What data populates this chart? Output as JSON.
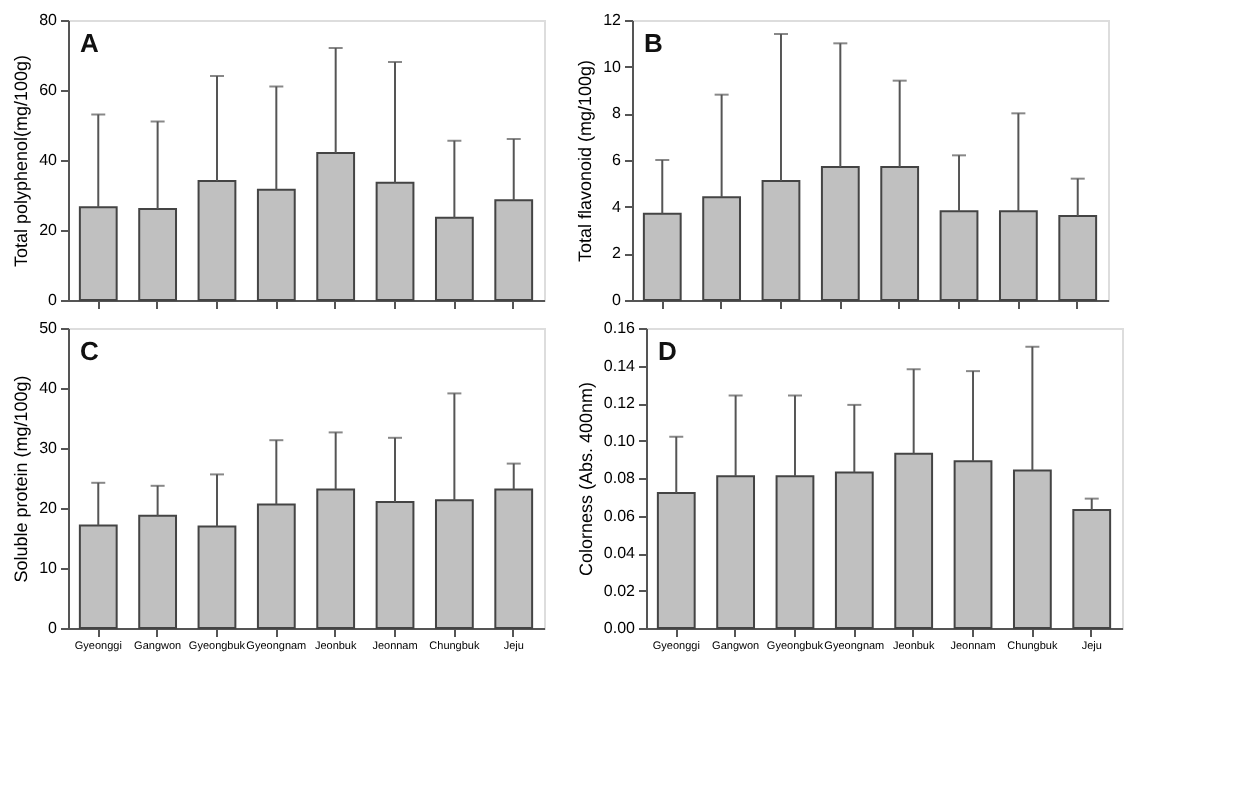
{
  "chart_data": [
    {
      "type": "bar",
      "categories": [
        null,
        null,
        null,
        null,
        null,
        null,
        null,
        null
      ],
      "ylabel": "Total polyphenol(mg/100g)",
      "annotations": [
        "A"
      ],
      "color": "#c0c0c0",
      "values": [
        26.5,
        26,
        34,
        31.5,
        42,
        33.5,
        23.5,
        28.5
      ],
      "errors": [
        [
          26.5,
          53
        ],
        [
          26,
          51
        ],
        [
          34,
          64
        ],
        [
          31.5,
          61
        ],
        [
          42,
          72
        ],
        [
          33.5,
          68
        ],
        [
          23.5,
          45.5
        ],
        [
          28.5,
          46
        ]
      ],
      "ylim": [
        0,
        80
      ],
      "yticks": [
        0,
        20,
        40,
        60,
        80
      ],
      "tick_labels": "y",
      "grid": false
    },
    {
      "type": "bar",
      "categories": [
        null,
        null,
        null,
        null,
        null,
        null,
        null,
        null
      ],
      "ylabel": "Total flavonoid (mg/100g)",
      "annotations": [
        "B"
      ],
      "color": "#c0c0c0",
      "values": [
        3.7,
        4.4,
        5.1,
        5.7,
        5.7,
        3.8,
        3.8,
        3.6
      ],
      "errors": [
        [
          3.7,
          6.0
        ],
        [
          4.4,
          8.8
        ],
        [
          5.1,
          11.4
        ],
        [
          5.7,
          11.0
        ],
        [
          5.7,
          9.4
        ],
        [
          3.8,
          6.2
        ],
        [
          3.8,
          8.0
        ],
        [
          3.6,
          5.2
        ]
      ],
      "ylim": [
        0,
        12
      ],
      "yticks": [
        0,
        2,
        4,
        6,
        8,
        10,
        12
      ],
      "tick_labels": "y",
      "grid": false
    },
    {
      "type": "bar",
      "categories": [
        "Gyeonggi",
        "Gangwon",
        "Gyeongbuk",
        "Gyeongnam",
        "Jeonbuk",
        "Jeonnam",
        "Chungbuk",
        "Jeju"
      ],
      "ylabel": "Soluble protein (mg/100g)",
      "annotations": [
        "C"
      ],
      "color": "#c0c0c0",
      "values": [
        17.1,
        18.7,
        16.9,
        20.6,
        23.1,
        21.0,
        21.3,
        23.1
      ],
      "errors": [
        [
          17.1,
          24.2
        ],
        [
          18.7,
          23.7
        ],
        [
          16.9,
          25.6
        ],
        [
          20.6,
          31.3
        ],
        [
          23.1,
          32.6
        ],
        [
          21.0,
          31.7
        ],
        [
          21.3,
          39.1
        ],
        [
          23.1,
          27.4
        ]
      ],
      "ylim": [
        0,
        50
      ],
      "yticks": [
        0,
        10,
        20,
        30,
        40,
        50
      ],
      "grid": false
    },
    {
      "type": "bar",
      "categories": [
        "Gyeonggi",
        "Gangwon",
        "Gyeongbuk",
        "Gyeongnam",
        "Jeonbuk",
        "Jeonnam",
        "Chungbuk",
        "Jeju"
      ],
      "ylabel": "Colorness (Abs. 400nm)",
      "annotations": [
        "D"
      ],
      "color": "#c0c0c0",
      "values": [
        0.072,
        0.081,
        0.081,
        0.083,
        0.093,
        0.089,
        0.084,
        0.063
      ],
      "errors": [
        [
          0.072,
          0.102
        ],
        [
          0.081,
          0.124
        ],
        [
          0.081,
          0.124
        ],
        [
          0.083,
          0.119
        ],
        [
          0.093,
          0.138
        ],
        [
          0.089,
          0.137
        ],
        [
          0.084,
          0.15
        ],
        [
          0.063,
          0.069
        ]
      ],
      "ylim": [
        0,
        0.16
      ],
      "yticks": [
        {
          "value": 0,
          "label": "0.00"
        },
        {
          "value": 0.02,
          "label": "0.02"
        },
        {
          "value": 0.04,
          "label": "0.04"
        },
        {
          "value": 0.06,
          "label": "0.06"
        },
        {
          "value": 0.08,
          "label": "0.08"
        },
        {
          "value": 0.1,
          "label": "0.10"
        },
        {
          "value": 0.12,
          "label": "0.12"
        },
        {
          "value": 0.14,
          "label": "0.14"
        },
        {
          "value": 0.16,
          "label": "0.16"
        }
      ],
      "grid": false
    }
  ]
}
